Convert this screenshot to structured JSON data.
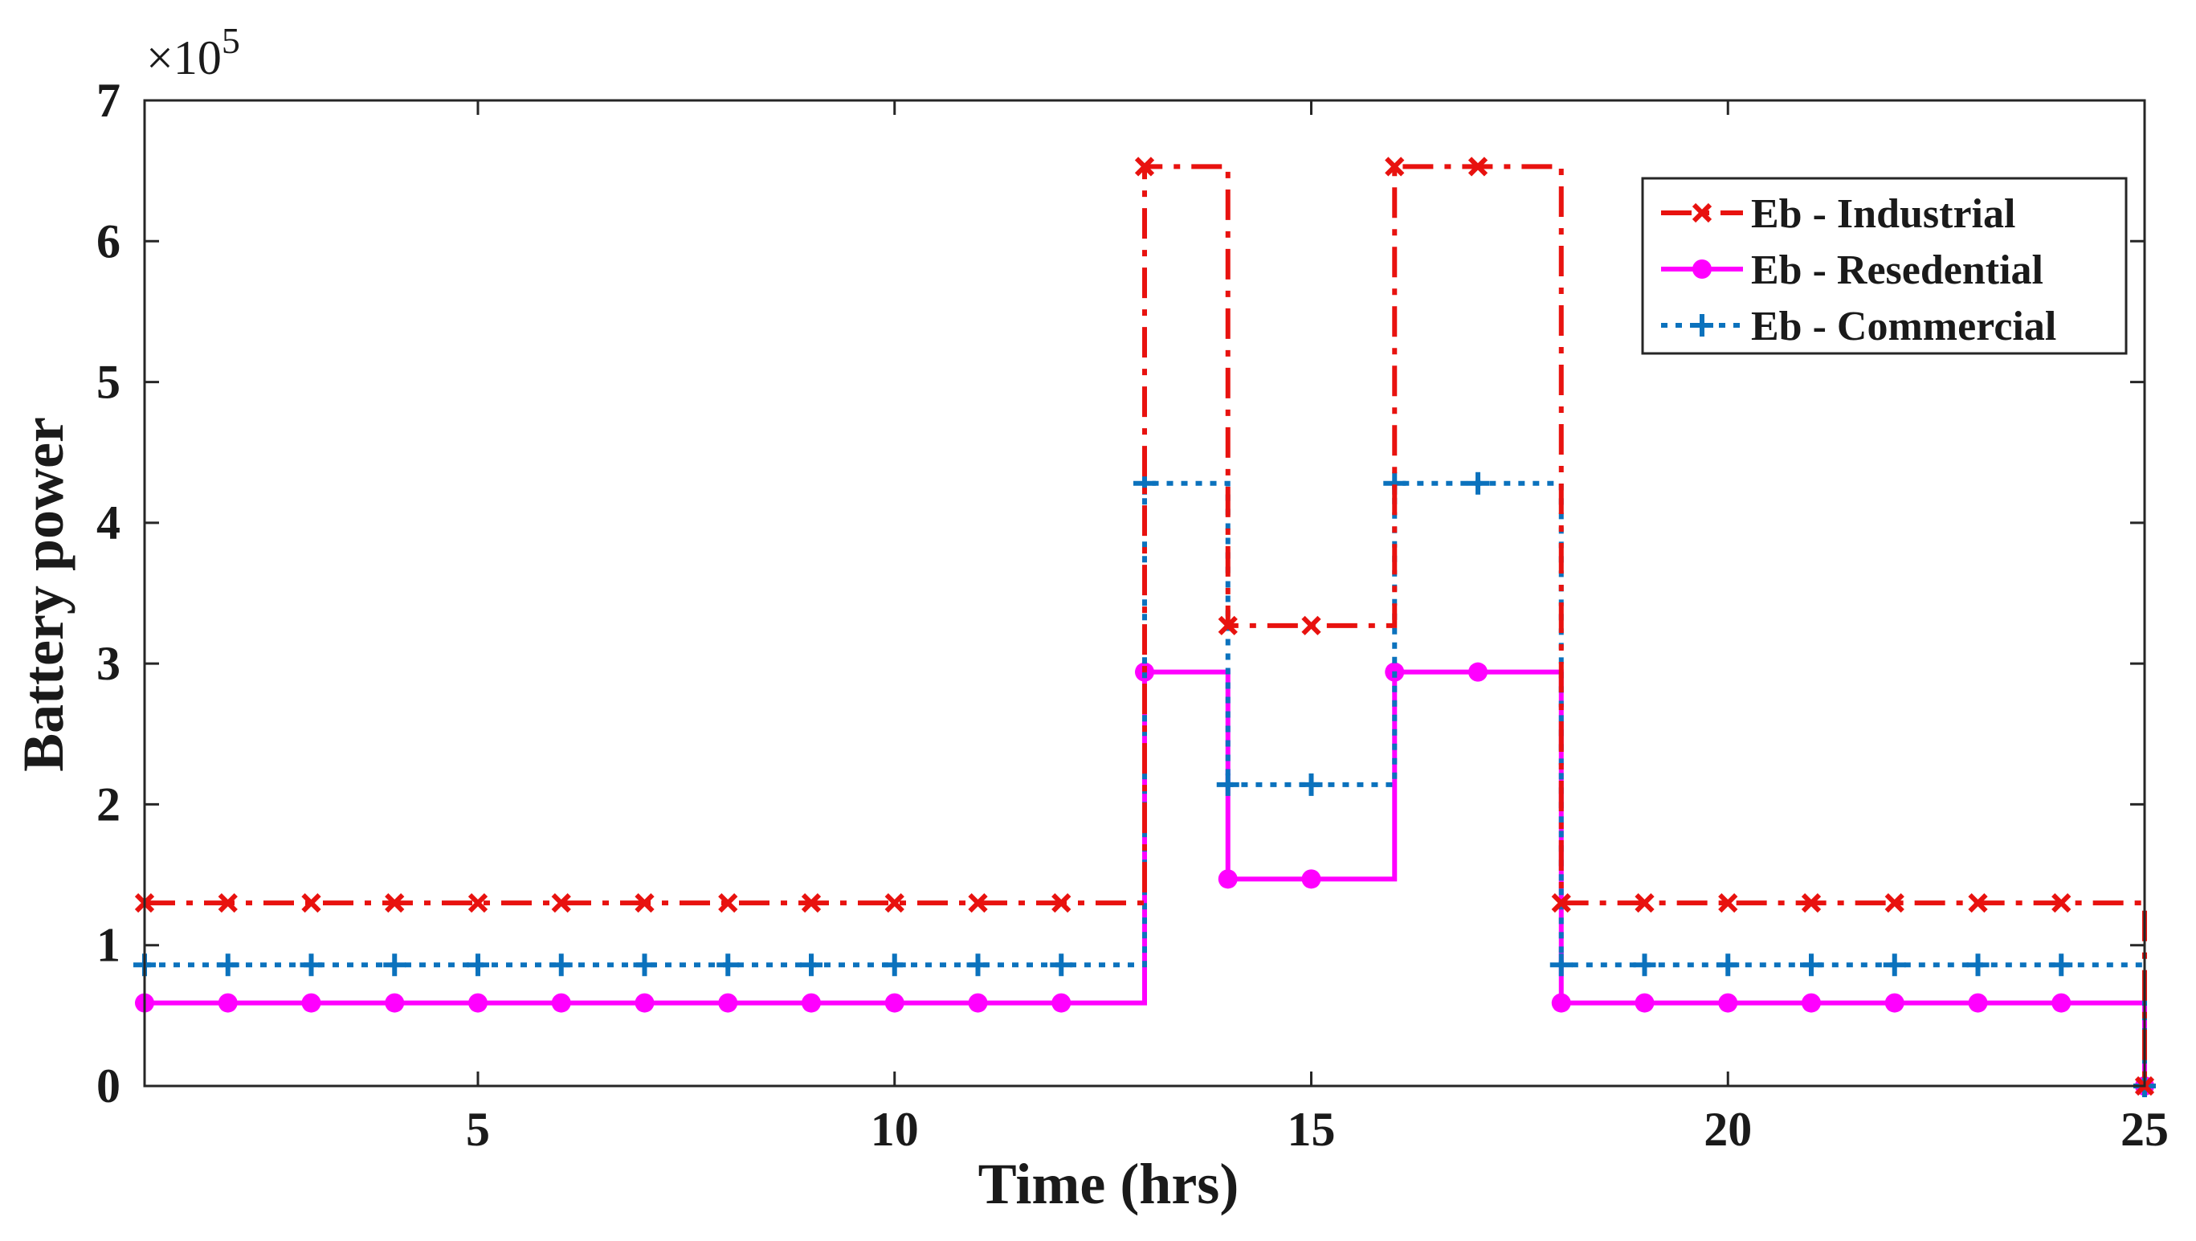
{
  "chart_data": {
    "type": "line",
    "style": "stairs",
    "title": "",
    "xlabel": "Time (hrs)",
    "ylabel": "Battery power",
    "y_exponent_label": "×10",
    "y_exponent_power": "5",
    "xlim": [
      1,
      25
    ],
    "ylim": [
      0,
      7
    ],
    "xticks": [
      5,
      10,
      15,
      20,
      25
    ],
    "yticks": [
      0,
      1,
      2,
      3,
      4,
      5,
      6,
      7
    ],
    "grid": false,
    "legend_position": "top-right",
    "x": [
      1,
      2,
      3,
      4,
      5,
      6,
      7,
      8,
      9,
      10,
      11,
      12,
      13,
      14,
      15,
      16,
      17,
      18,
      19,
      20,
      21,
      22,
      23,
      24,
      25
    ],
    "series": [
      {
        "name": "Eb - Industrial",
        "color": "#e8120f",
        "dash": "dash-dot",
        "marker": "x",
        "values": [
          1.3,
          1.3,
          1.3,
          1.3,
          1.3,
          1.3,
          1.3,
          1.3,
          1.3,
          1.3,
          1.3,
          1.3,
          6.53,
          3.27,
          3.27,
          6.53,
          6.53,
          1.3,
          1.3,
          1.3,
          1.3,
          1.3,
          1.3,
          1.3,
          0
        ]
      },
      {
        "name": "Eb - Resedential",
        "color": "#ff00ff",
        "dash": "solid",
        "marker": "o",
        "values": [
          0.59,
          0.59,
          0.59,
          0.59,
          0.59,
          0.59,
          0.59,
          0.59,
          0.59,
          0.59,
          0.59,
          0.59,
          2.94,
          1.47,
          1.47,
          2.94,
          2.94,
          0.59,
          0.59,
          0.59,
          0.59,
          0.59,
          0.59,
          0.59,
          0
        ]
      },
      {
        "name": "Eb - Commercial",
        "color": "#0b72bd",
        "dash": "dotted",
        "marker": "+",
        "values": [
          0.86,
          0.86,
          0.86,
          0.86,
          0.86,
          0.86,
          0.86,
          0.86,
          0.86,
          0.86,
          0.86,
          0.86,
          4.28,
          2.14,
          2.14,
          4.28,
          4.28,
          0.86,
          0.86,
          0.86,
          0.86,
          0.86,
          0.86,
          0.86,
          0
        ]
      }
    ]
  }
}
